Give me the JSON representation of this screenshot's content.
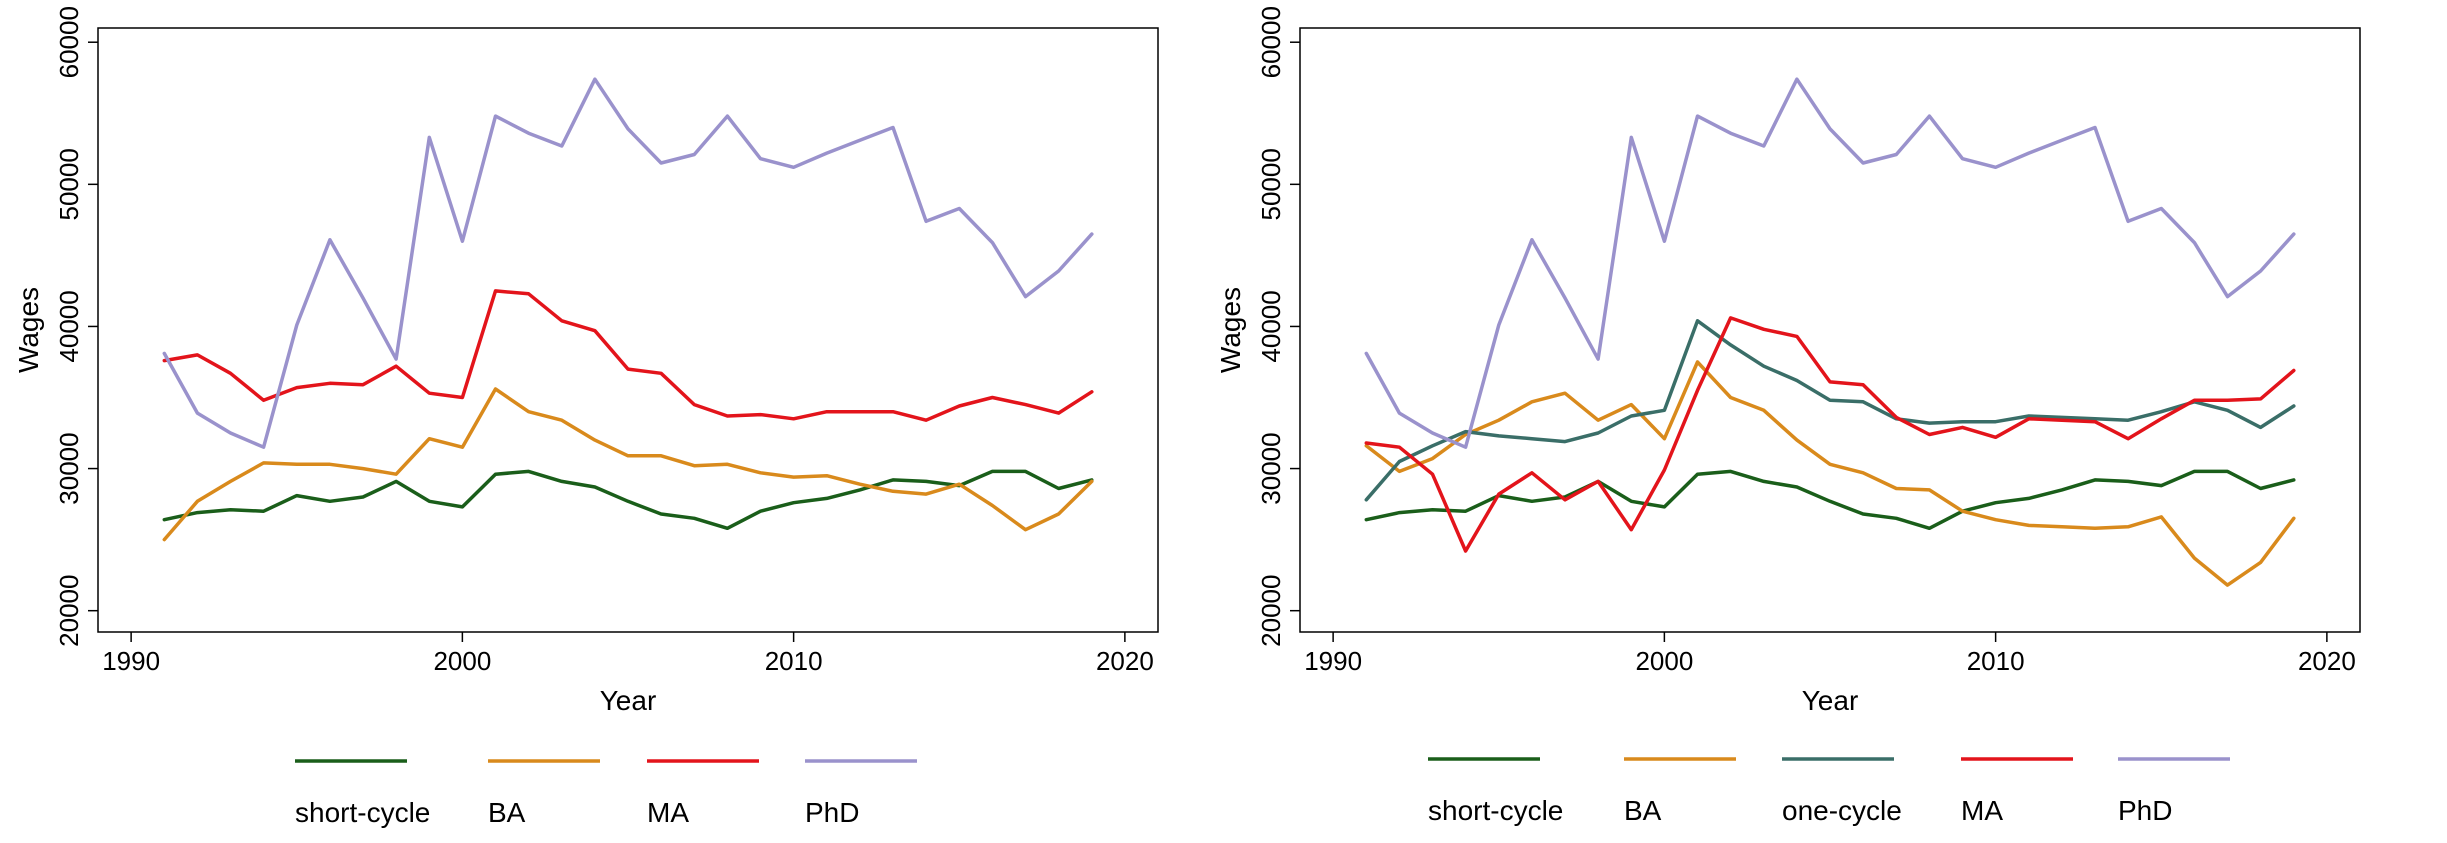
{
  "chart_data": [
    {
      "type": "line",
      "xlabel": "Year",
      "ylabel": "Wages",
      "xlim": [
        1989,
        2021
      ],
      "ylim": [
        18500,
        61000
      ],
      "xticks": [
        "1990",
        "2000",
        "2010",
        "2020"
      ],
      "yticks": [
        "20000",
        "30000",
        "40000",
        "50000",
        "60000"
      ],
      "legend_position": "bottom",
      "x": [
        1991,
        1992,
        1993,
        1994,
        1995,
        1996,
        1997,
        1998,
        1999,
        2000,
        2001,
        2002,
        2003,
        2004,
        2005,
        2006,
        2007,
        2008,
        2009,
        2010,
        2011,
        2012,
        2013,
        2014,
        2015,
        2016,
        2017,
        2018,
        2019
      ],
      "series": [
        {
          "name": "short-cycle",
          "color": "#1a5e1a",
          "values": [
            26400,
            26900,
            27100,
            27000,
            28100,
            27700,
            28000,
            29100,
            27700,
            27300,
            29600,
            29800,
            29100,
            28700,
            27700,
            26800,
            26500,
            25800,
            27000,
            27600,
            27900,
            28500,
            29200,
            29100,
            28800,
            29800,
            29800,
            28600,
            29200
          ]
        },
        {
          "name": "BA",
          "color": "#d98a1c",
          "values": [
            25000,
            27700,
            29100,
            30400,
            30300,
            30300,
            30000,
            29600,
            32100,
            31500,
            35600,
            34000,
            33400,
            32000,
            30900,
            30900,
            30200,
            30300,
            29700,
            29400,
            29500,
            28900,
            28400,
            28200,
            28900,
            27400,
            25700,
            26800,
            29100
          ]
        },
        {
          "name": "MA",
          "color": "#e3141b",
          "values": [
            37600,
            38000,
            36700,
            34800,
            35700,
            36000,
            35900,
            37200,
            35300,
            35000,
            42500,
            42300,
            40400,
            39700,
            37000,
            36700,
            34500,
            33700,
            33800,
            33500,
            34000,
            34000,
            34000,
            33400,
            34400,
            35000,
            34500,
            33900,
            35400
          ]
        },
        {
          "name": "PhD",
          "color": "#9a92cc",
          "values": [
            38100,
            33900,
            32500,
            31500,
            40100,
            46100,
            42000,
            37700,
            53300,
            46000,
            54800,
            53600,
            52700,
            57400,
            53900,
            51500,
            52100,
            54800,
            51800,
            51200,
            52200,
            53100,
            54000,
            47400,
            48300,
            45900,
            42100,
            43900,
            46500
          ]
        }
      ]
    },
    {
      "type": "line",
      "xlabel": "Year",
      "ylabel": "Wages",
      "xlim": [
        1989,
        2021
      ],
      "ylim": [
        18500,
        61000
      ],
      "xticks": [
        "1990",
        "2000",
        "2010",
        "2020"
      ],
      "yticks": [
        "20000",
        "30000",
        "40000",
        "50000",
        "60000"
      ],
      "legend_position": "bottom",
      "x": [
        1991,
        1992,
        1993,
        1994,
        1995,
        1996,
        1997,
        1998,
        1999,
        2000,
        2001,
        2002,
        2003,
        2004,
        2005,
        2006,
        2007,
        2008,
        2009,
        2010,
        2011,
        2012,
        2013,
        2014,
        2015,
        2016,
        2017,
        2018,
        2019
      ],
      "series": [
        {
          "name": "short-cycle",
          "color": "#1a5e1a",
          "values": [
            26400,
            26900,
            27100,
            27000,
            28100,
            27700,
            28000,
            29100,
            27700,
            27300,
            29600,
            29800,
            29100,
            28700,
            27700,
            26800,
            26500,
            25800,
            27000,
            27600,
            27900,
            28500,
            29200,
            29100,
            28800,
            29800,
            29800,
            28600,
            29200
          ]
        },
        {
          "name": "BA",
          "color": "#d98a1c",
          "values": [
            31600,
            29800,
            30700,
            32400,
            33400,
            34700,
            35300,
            33400,
            34500,
            32100,
            37500,
            35000,
            34100,
            32000,
            30300,
            29700,
            28600,
            28500,
            27000,
            26400,
            26000,
            25900,
            25800,
            25900,
            26600,
            23700,
            21800,
            23400,
            26500
          ]
        },
        {
          "name": "one-cycle",
          "color": "#3a6e68",
          "values": [
            27800,
            30500,
            31600,
            32600,
            32300,
            32100,
            31900,
            32500,
            33700,
            34100,
            40400,
            38700,
            37200,
            36200,
            34800,
            34700,
            33500,
            33200,
            33300,
            33300,
            33700,
            33600,
            33500,
            33400,
            34000,
            34700,
            34100,
            32900,
            34400
          ]
        },
        {
          "name": "MA",
          "color": "#e3141b",
          "values": [
            31800,
            31500,
            29600,
            24200,
            28200,
            29700,
            27800,
            29100,
            25700,
            29900,
            35500,
            40600,
            39800,
            39300,
            36100,
            35900,
            33600,
            32400,
            32900,
            32200,
            33500,
            33400,
            33300,
            32100,
            33500,
            34800,
            34800,
            34900,
            36900
          ]
        },
        {
          "name": "PhD",
          "color": "#9a92cc",
          "values": [
            38100,
            33900,
            32500,
            31500,
            40100,
            46100,
            42000,
            37700,
            53300,
            46000,
            54800,
            53600,
            52700,
            57400,
            53900,
            51500,
            52100,
            54800,
            51800,
            51200,
            52200,
            53100,
            54000,
            47400,
            48300,
            45900,
            42100,
            43900,
            46500
          ]
        }
      ]
    }
  ]
}
